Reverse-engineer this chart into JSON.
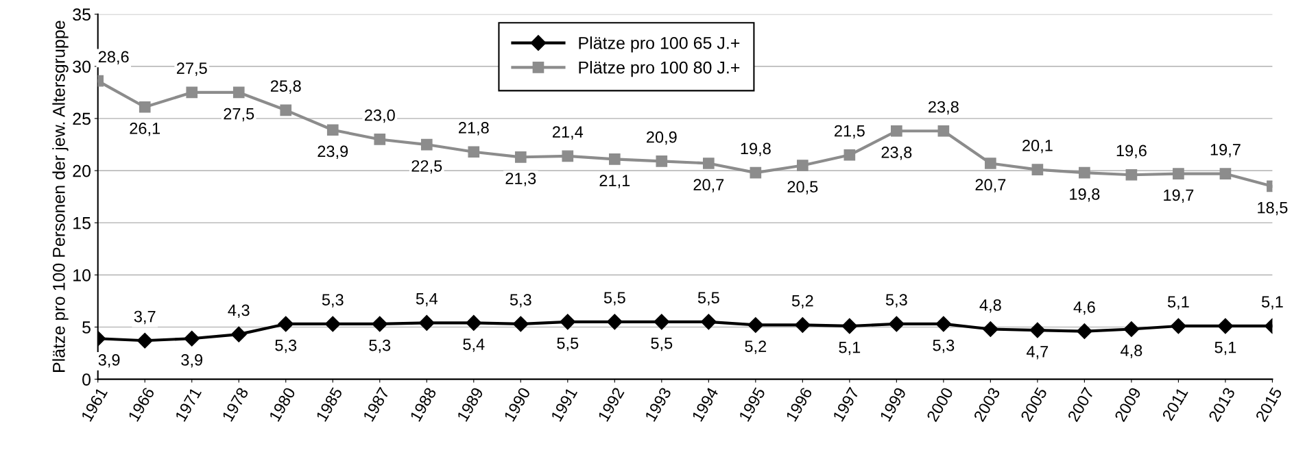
{
  "chart_data": {
    "type": "line",
    "ylabel": "Plätze pro 100 Personen der jew. Altersgruppe",
    "categories": [
      "1961",
      "1966",
      "1971",
      "1978",
      "1980",
      "1985",
      "1987",
      "1988",
      "1989",
      "1990",
      "1991",
      "1992",
      "1993",
      "1994",
      "1995",
      "1996",
      "1997",
      "1999",
      "2000",
      "2003",
      "2005",
      "2007",
      "2009",
      "2011",
      "2013",
      "2015"
    ],
    "series": [
      {
        "name": "Plätze pro 100 65 J.+",
        "color": "#000000",
        "marker": "diamond",
        "values": [
          3.9,
          3.7,
          3.9,
          4.3,
          5.3,
          5.3,
          5.3,
          5.4,
          5.4,
          5.3,
          5.5,
          5.5,
          5.5,
          5.5,
          5.2,
          5.2,
          5.1,
          5.3,
          5.3,
          4.8,
          4.7,
          4.6,
          4.8,
          5.1,
          5.1,
          5.1
        ],
        "value_labels": [
          "3,9",
          "3,7",
          "3,9",
          "4,3",
          "5,3",
          "5,3",
          "5,3",
          "5,4",
          "5,4",
          "5,3",
          "5,5",
          "5,5",
          "5,5",
          "5,5",
          "5,2",
          "5,2",
          "5,1",
          "5,3",
          "5,3",
          "4,8",
          "4,7",
          "4,6",
          "4,8",
          "5,1",
          "5,1",
          "5,1"
        ]
      },
      {
        "name": "Plätze pro 100 80 J.+",
        "color": "#8c8c8c",
        "marker": "square",
        "values": [
          28.6,
          26.1,
          27.5,
          27.5,
          25.8,
          23.9,
          23.0,
          22.5,
          21.8,
          21.3,
          21.4,
          21.1,
          20.9,
          20.7,
          19.8,
          20.5,
          21.5,
          23.8,
          23.8,
          20.7,
          20.1,
          19.8,
          19.6,
          19.7,
          19.7,
          18.5
        ],
        "value_labels": [
          "28,6",
          "26,1",
          "27,5",
          "27,5",
          "25,8",
          "23,9",
          "23,0",
          "22,5",
          "21,8",
          "21,3",
          "21,4",
          "21,1",
          "20,9",
          "20,7",
          "19,8",
          "20,5",
          "21,5",
          "23,8",
          "23,8",
          "20,7",
          "20,1",
          "19,8",
          "19,6",
          "19,7",
          "19,7",
          "18,5"
        ]
      }
    ],
    "ylim": [
      0,
      35
    ],
    "yticks": [
      0,
      5,
      10,
      15,
      20,
      25,
      30,
      35
    ],
    "grid": "y",
    "legend": "top",
    "line_style": "solid"
  }
}
